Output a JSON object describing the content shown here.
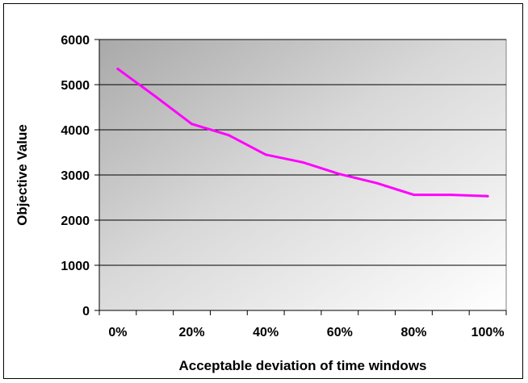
{
  "chart_data": {
    "type": "line",
    "title": "",
    "xlabel": "Acceptable deviation of time windows",
    "ylabel": "Objective Value",
    "x": [
      0,
      10,
      20,
      30,
      40,
      50,
      60,
      70,
      80,
      90,
      100
    ],
    "x_ticks": [
      "0%",
      "20%",
      "40%",
      "60%",
      "80%",
      "100%"
    ],
    "y_ticks": [
      "0",
      "1000",
      "2000",
      "3000",
      "4000",
      "5000",
      "6000"
    ],
    "ylim": [
      0,
      6000
    ],
    "grid": "horizontal",
    "legend": "none",
    "series": [
      {
        "values": [
          5350,
          4750,
          4130,
          3880,
          3450,
          3280,
          3020,
          2820,
          2560,
          2560,
          2530
        ],
        "color": "#FF00FF"
      }
    ],
    "plot_background": "gradient-gray"
  }
}
